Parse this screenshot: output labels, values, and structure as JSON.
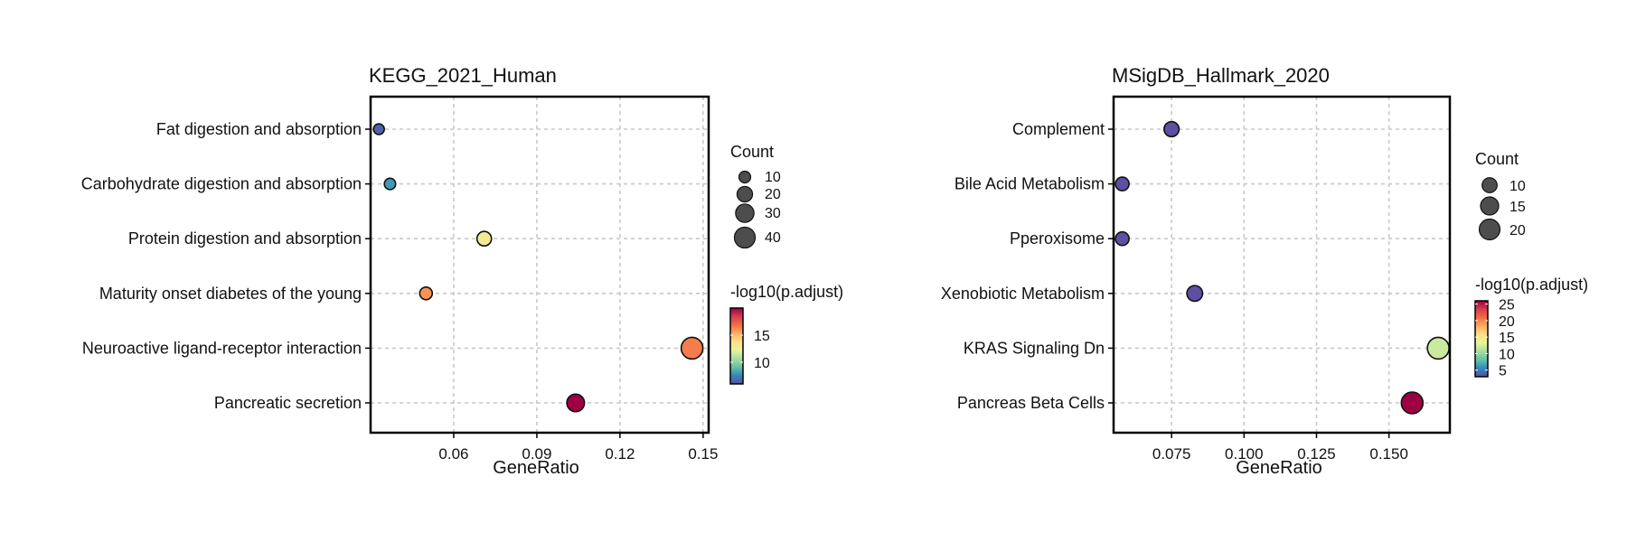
{
  "chart_data": [
    {
      "type": "scatter",
      "title": "KEGG_2021_Human",
      "xlabel": "GeneRatio",
      "ylabel": "",
      "categories": [
        "Fat digestion and absorption",
        "Carbohydrate digestion and absorption",
        "Protein digestion and absorption",
        "Maturity onset diabetes of the young",
        "Neuroactive ligand-receptor interaction",
        "Pancreatic secretion"
      ],
      "x": [
        0.033,
        0.037,
        0.071,
        0.05,
        0.146,
        0.104
      ],
      "count": [
        8,
        9,
        17,
        12,
        44,
        27
      ],
      "neg_log10_padj": [
        6.5,
        8,
        13,
        16,
        16.5,
        20
      ],
      "xlim": [
        0.03,
        0.152
      ],
      "xticks": [
        0.06,
        0.09,
        0.12,
        0.15
      ],
      "xtick_labels": [
        "0.06",
        "0.09",
        "0.12",
        "0.15"
      ],
      "grid": true,
      "size_legend": {
        "title": "Count",
        "values": [
          10,
          20,
          30,
          40
        ],
        "labels": [
          "10",
          "20",
          "30",
          "40"
        ]
      },
      "color_legend": {
        "title": "-log10(p.adjust)",
        "min": 6,
        "max": 20,
        "ticks": [
          10,
          15
        ],
        "tick_labels": [
          "10",
          "15"
        ]
      },
      "legend_position": "right"
    },
    {
      "type": "scatter",
      "title": "MSigDB_Hallmark_2020",
      "xlabel": "GeneRatio",
      "ylabel": "",
      "categories": [
        "Complement",
        "Bile Acid Metabolism",
        "Pperoxisome",
        "Xenobiotic Metabolism",
        "KRAS Signaling Dn",
        "Pancreas Beta Cells"
      ],
      "x": [
        0.075,
        0.058,
        0.058,
        0.083,
        0.167,
        0.158
      ],
      "count": [
        10,
        8,
        8,
        11,
        22,
        22
      ],
      "neg_log10_padj": [
        3,
        3,
        3,
        3,
        12,
        26
      ],
      "xlim": [
        0.055,
        0.171
      ],
      "xticks": [
        0.075,
        0.1,
        0.125,
        0.15
      ],
      "xtick_labels": [
        "0.075",
        "0.100",
        "0.125",
        "0.150"
      ],
      "grid": true,
      "size_legend": {
        "title": "Count",
        "values": [
          10,
          15,
          20
        ],
        "labels": [
          "10",
          "15",
          "20"
        ]
      },
      "color_legend": {
        "title": "-log10(p.adjust)",
        "min": 3,
        "max": 26,
        "ticks": [
          5,
          10,
          15,
          20,
          25
        ],
        "tick_labels": [
          "5",
          "10",
          "15",
          "20",
          "25"
        ]
      },
      "legend_position": "right"
    }
  ],
  "colors": {
    "ramp": [
      "#5e4fa2",
      "#3288bd",
      "#66c2a5",
      "#abdda4",
      "#e6f598",
      "#fee08b",
      "#fdae61",
      "#f46d43",
      "#d53e4f",
      "#9e0142"
    ],
    "point_stroke": "#111111",
    "legend_point_fill": "#4d4d4d",
    "grid": "#c8c8c8"
  }
}
